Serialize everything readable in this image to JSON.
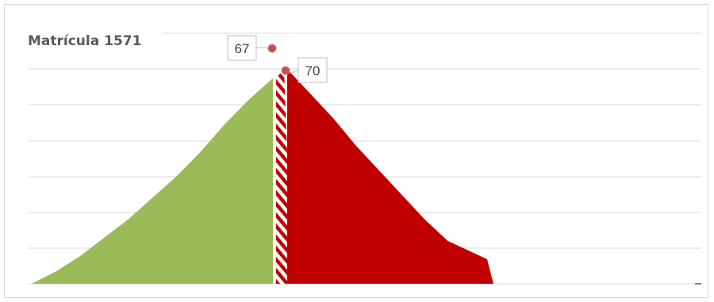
{
  "chart_data": {
    "type": "area",
    "title": "Matrícula 1571",
    "xlabel": "",
    "ylabel": "",
    "grid": true,
    "ylim": [
      0,
      70
    ],
    "series": [
      {
        "values": [
          0,
          4,
          9,
          15,
          21,
          28,
          35,
          43,
          52,
          60,
          67
        ],
        "color": "#9bbb59"
      },
      {
        "values": [
          70,
          67
        ],
        "color": "#c00000",
        "pattern": "diagonal-stripes"
      },
      {
        "values": [
          70,
          62,
          54,
          45,
          37,
          29,
          21,
          14,
          8,
          0
        ],
        "color": "#c00000"
      }
    ],
    "data_labels": [
      {
        "text": "67",
        "value": 67
      },
      {
        "text": "70",
        "value": 70
      }
    ],
    "colors": {
      "green": "#9bbb59",
      "red": "#c00000",
      "marker": "#c0504d",
      "grid": "#d9d9d9"
    }
  }
}
